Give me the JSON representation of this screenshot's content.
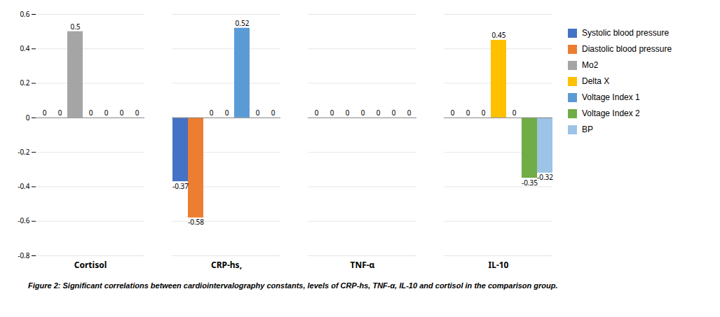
{
  "chart_data": {
    "type": "bar",
    "caption": "Figure 2: Significant correlations between cardiointervalography constants, levels of CRP-hs, TNF-α, IL-10 and cortisol in the comparison group.",
    "categories": [
      "Cortisol",
      "CRP-hs,",
      "TNF-α",
      "IL-10"
    ],
    "series": [
      {
        "name": "Systolic blood pressure",
        "color": "#4472C4",
        "values": [
          0,
          -0.37,
          0,
          0
        ]
      },
      {
        "name": "Diastolic blood pressure",
        "color": "#ED7D31",
        "values": [
          0,
          -0.58,
          0,
          0
        ]
      },
      {
        "name": "Mo2",
        "color": "#A5A5A5",
        "values": [
          0.5,
          0,
          0,
          0
        ]
      },
      {
        "name": "Delta X",
        "color": "#FFC000",
        "values": [
          0,
          0,
          0,
          0.45
        ]
      },
      {
        "name": "Voltage Index 1",
        "color": "#5B9BD5",
        "values": [
          0,
          0.52,
          0,
          0
        ]
      },
      {
        "name": "Voltage Index 2",
        "color": "#70AD47",
        "values": [
          0,
          0,
          0,
          -0.35
        ]
      },
      {
        "name": "BP",
        "color": "#9DC3E6",
        "values": [
          0,
          0,
          0,
          -0.32
        ]
      }
    ],
    "ylim": [
      -0.8,
      0.6
    ],
    "yticks": [
      -0.8,
      -0.6,
      -0.4,
      -0.2,
      0,
      0.2,
      0.4,
      0.6
    ],
    "grid": true,
    "legend": "right",
    "data_labels": true
  }
}
